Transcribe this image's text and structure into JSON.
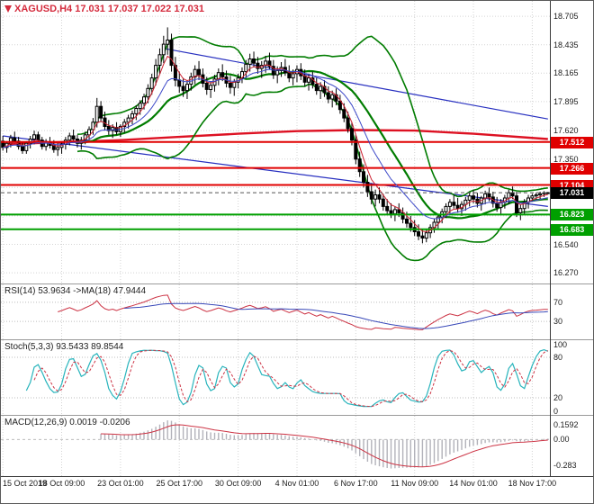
{
  "main": {
    "title": "XAGUSD,H4 17.031 17.037 17.022 17.031"
  },
  "rsi": {
    "title": "RSI(14) 53.9634 ->MA(18) 47.9444"
  },
  "stoch": {
    "title": "Stoch(5,3,3) 93.5433 89.8544"
  },
  "macd": {
    "title": "MACD(12,26,9) 0.0019 -0.0206"
  },
  "colors": {
    "up": "#ffffff",
    "down": "#000000",
    "outline": "#000000",
    "bands": "#007c00",
    "ma_fast": "#cc2030",
    "ma_slow": "#3c48c8",
    "ma_long": "#dd1122",
    "trend": "#2830c0",
    "res": "#e00000",
    "sup": "#00a000",
    "cur": "#000000",
    "rsi": "#cc3344",
    "rsi_ma": "#3848b8",
    "stoch_k": "#28b4bc",
    "stoch_d": "#cc3344",
    "macd_hist": "#b2b2ba",
    "macd_sig": "#cc3344",
    "grid": "#d4d4d4",
    "level": "#bcbcbc",
    "axis_text": "#1c1c1c",
    "title": "#d42a3c"
  },
  "chart_data": [
    {
      "type": "candlestick",
      "title": "XAGUSD,H4",
      "y_axis": {
        "min": 16.22,
        "max": 18.8,
        "grid_prices": [
          18.705,
          18.435,
          18.165,
          17.895,
          17.62,
          17.35,
          17.08,
          16.81,
          16.54,
          16.27
        ],
        "labels": [
          {
            "text": "18.705",
            "price": 18.705
          },
          {
            "text": "18.435",
            "price": 18.435
          },
          {
            "text": "18.165",
            "price": 18.165
          },
          {
            "text": "17.895",
            "price": 17.895
          },
          {
            "text": "17.620",
            "price": 17.62
          },
          {
            "text": "17.350",
            "price": 17.35
          },
          {
            "text": "16.540",
            "price": 16.54
          },
          {
            "text": "16.270",
            "price": 16.27
          }
        ]
      },
      "x_labels": [
        {
          "label": "15 Oct 2019",
          "bar": 0
        },
        {
          "label": "18 Oct 09:00",
          "bar": 15
        },
        {
          "label": "23 Oct 01:00",
          "bar": 30
        },
        {
          "label": "25 Oct 17:00",
          "bar": 45
        },
        {
          "label": "30 Oct 09:00",
          "bar": 60
        },
        {
          "label": "4 Nov 01:00",
          "bar": 75
        },
        {
          "label": "6 Nov 17:00",
          "bar": 90
        },
        {
          "label": "11 Nov 09:00",
          "bar": 105
        },
        {
          "label": "14 Nov 01:00",
          "bar": 120
        },
        {
          "label": "18 Nov 17:00",
          "bar": 135
        }
      ],
      "overlays": {
        "bollinger": {
          "period": 20,
          "deviation": 2
        },
        "ema_fast_period": 5,
        "ema_slow_period": 13,
        "horizontal_lines": [
          {
            "price": 17.512,
            "kind": "res",
            "label": "17.512"
          },
          {
            "price": 17.266,
            "kind": "res",
            "label": "17.266"
          },
          {
            "price": 17.104,
            "kind": "res",
            "label": "17.104"
          },
          {
            "price": 16.823,
            "kind": "sup",
            "label": "16.823"
          },
          {
            "price": 16.683,
            "kind": "sup",
            "label": "16.683"
          }
        ],
        "current_price": {
          "price": 17.031,
          "label": "17.031"
        },
        "trendlines": [
          {
            "from_bar": 41,
            "from_price": 18.4,
            "to_bar": 139,
            "to_price": 17.73
          },
          {
            "from_bar": 0,
            "from_price": 17.57,
            "to_bar": 139,
            "to_price": 16.9
          }
        ],
        "long_ma_points": [
          [
            0,
            17.49
          ],
          [
            15,
            17.51
          ],
          [
            30,
            17.53
          ],
          [
            45,
            17.56
          ],
          [
            60,
            17.59
          ],
          [
            75,
            17.615
          ],
          [
            90,
            17.625
          ],
          [
            105,
            17.62
          ],
          [
            120,
            17.59
          ],
          [
            139,
            17.54
          ]
        ]
      },
      "ohlc": [
        [
          17.52,
          17.57,
          17.43,
          17.46
        ],
        [
          17.46,
          17.52,
          17.41,
          17.5
        ],
        [
          17.5,
          17.58,
          17.46,
          17.55
        ],
        [
          17.55,
          17.61,
          17.5,
          17.52
        ],
        [
          17.52,
          17.56,
          17.44,
          17.47
        ],
        [
          17.47,
          17.51,
          17.4,
          17.43
        ],
        [
          17.43,
          17.52,
          17.4,
          17.5
        ],
        [
          17.5,
          17.57,
          17.45,
          17.54
        ],
        [
          17.54,
          17.62,
          17.49,
          17.58
        ],
        [
          17.58,
          17.61,
          17.5,
          17.53
        ],
        [
          17.53,
          17.56,
          17.44,
          17.47
        ],
        [
          17.47,
          17.54,
          17.43,
          17.51
        ],
        [
          17.51,
          17.56,
          17.45,
          17.48
        ],
        [
          17.48,
          17.53,
          17.41,
          17.44
        ],
        [
          17.44,
          17.5,
          17.38,
          17.46
        ],
        [
          17.46,
          17.52,
          17.4,
          17.49
        ],
        [
          17.49,
          17.56,
          17.44,
          17.53
        ],
        [
          17.53,
          17.6,
          17.48,
          17.57
        ],
        [
          17.57,
          17.63,
          17.51,
          17.54
        ],
        [
          17.54,
          17.58,
          17.46,
          17.5
        ],
        [
          17.5,
          17.56,
          17.44,
          17.53
        ],
        [
          17.53,
          17.61,
          17.49,
          17.58
        ],
        [
          17.58,
          17.66,
          17.53,
          17.63
        ],
        [
          17.63,
          17.74,
          17.58,
          17.7
        ],
        [
          17.7,
          17.93,
          17.65,
          17.85
        ],
        [
          17.85,
          17.9,
          17.7,
          17.74
        ],
        [
          17.74,
          17.8,
          17.62,
          17.66
        ],
        [
          17.66,
          17.72,
          17.58,
          17.62
        ],
        [
          17.62,
          17.68,
          17.55,
          17.65
        ],
        [
          17.65,
          17.7,
          17.58,
          17.61
        ],
        [
          17.61,
          17.68,
          17.56,
          17.66
        ],
        [
          17.66,
          17.73,
          17.6,
          17.7
        ],
        [
          17.7,
          17.77,
          17.64,
          17.74
        ],
        [
          17.74,
          17.81,
          17.68,
          17.78
        ],
        [
          17.78,
          17.86,
          17.72,
          17.83
        ],
        [
          17.83,
          17.91,
          17.77,
          17.88
        ],
        [
          17.88,
          17.97,
          17.82,
          17.94
        ],
        [
          17.94,
          18.06,
          17.88,
          18.02
        ],
        [
          18.02,
          18.16,
          17.96,
          18.12
        ],
        [
          18.12,
          18.3,
          18.05,
          18.24
        ],
        [
          18.24,
          18.4,
          18.16,
          18.34
        ],
        [
          18.34,
          18.52,
          18.26,
          18.44
        ],
        [
          18.44,
          18.6,
          18.34,
          18.48
        ],
        [
          18.48,
          18.54,
          18.18,
          18.24
        ],
        [
          18.24,
          18.32,
          18.04,
          18.1
        ],
        [
          18.1,
          18.18,
          17.98,
          18.04
        ],
        [
          18.04,
          18.12,
          17.94,
          18.0
        ],
        [
          18.0,
          18.1,
          17.92,
          18.06
        ],
        [
          18.06,
          18.17,
          18.0,
          18.13
        ],
        [
          18.13,
          18.24,
          18.06,
          18.2
        ],
        [
          18.2,
          18.28,
          18.1,
          18.15
        ],
        [
          18.15,
          18.21,
          18.03,
          18.07
        ],
        [
          18.07,
          18.13,
          17.96,
          18.01
        ],
        [
          18.01,
          18.09,
          17.93,
          18.05
        ],
        [
          18.05,
          18.15,
          17.99,
          18.11
        ],
        [
          18.11,
          18.21,
          18.05,
          18.17
        ],
        [
          18.17,
          18.25,
          18.09,
          18.13
        ],
        [
          18.13,
          18.19,
          18.03,
          18.07
        ],
        [
          18.07,
          18.14,
          17.97,
          18.03
        ],
        [
          18.03,
          18.11,
          17.95,
          18.08
        ],
        [
          18.08,
          18.16,
          18.02,
          18.12
        ],
        [
          18.12,
          18.22,
          18.07,
          18.18
        ],
        [
          18.18,
          18.29,
          18.12,
          18.25
        ],
        [
          18.25,
          18.35,
          18.18,
          18.3
        ],
        [
          18.3,
          18.37,
          18.22,
          18.26
        ],
        [
          18.26,
          18.32,
          18.16,
          18.21
        ],
        [
          18.21,
          18.28,
          18.12,
          18.24
        ],
        [
          18.24,
          18.33,
          18.17,
          18.28
        ],
        [
          18.28,
          18.36,
          18.2,
          18.23
        ],
        [
          18.23,
          18.29,
          18.11,
          18.15
        ],
        [
          18.15,
          18.23,
          18.07,
          18.19
        ],
        [
          18.19,
          18.27,
          18.13,
          18.22
        ],
        [
          18.22,
          18.3,
          18.14,
          18.17
        ],
        [
          18.17,
          18.24,
          18.08,
          18.12
        ],
        [
          18.12,
          18.2,
          18.05,
          18.16
        ],
        [
          18.16,
          18.24,
          18.08,
          18.2
        ],
        [
          18.2,
          18.26,
          18.1,
          18.14
        ],
        [
          18.14,
          18.2,
          18.04,
          18.08
        ],
        [
          18.08,
          18.16,
          18.0,
          18.12
        ],
        [
          18.12,
          18.18,
          18.02,
          18.06
        ],
        [
          18.06,
          18.12,
          17.96,
          18.0
        ],
        [
          18.0,
          18.08,
          17.92,
          18.04
        ],
        [
          18.04,
          18.1,
          17.94,
          17.98
        ],
        [
          17.98,
          18.04,
          17.88,
          17.92
        ],
        [
          17.92,
          18.0,
          17.84,
          17.96
        ],
        [
          17.96,
          18.02,
          17.86,
          17.9
        ],
        [
          17.9,
          17.96,
          17.78,
          17.82
        ],
        [
          17.82,
          17.88,
          17.7,
          17.74
        ],
        [
          17.74,
          17.8,
          17.6,
          17.64
        ],
        [
          17.64,
          17.7,
          17.48,
          17.53
        ],
        [
          17.53,
          17.58,
          17.3,
          17.35
        ],
        [
          17.35,
          17.42,
          17.18,
          17.23
        ],
        [
          17.23,
          17.3,
          17.08,
          17.13
        ],
        [
          17.13,
          17.2,
          16.99,
          17.04
        ],
        [
          17.04,
          17.12,
          16.92,
          16.97
        ],
        [
          16.97,
          17.06,
          16.9,
          17.01
        ],
        [
          17.01,
          17.08,
          16.93,
          16.97
        ],
        [
          16.97,
          17.02,
          16.86,
          16.9
        ],
        [
          16.9,
          16.97,
          16.82,
          16.86
        ],
        [
          16.86,
          16.93,
          16.79,
          16.83
        ],
        [
          16.83,
          16.9,
          16.76,
          16.87
        ],
        [
          16.87,
          16.93,
          16.8,
          16.84
        ],
        [
          16.84,
          16.89,
          16.74,
          16.78
        ],
        [
          16.78,
          16.85,
          16.7,
          16.74
        ],
        [
          16.74,
          16.81,
          16.66,
          16.7
        ],
        [
          16.7,
          16.77,
          16.62,
          16.66
        ],
        [
          16.66,
          16.73,
          16.58,
          16.62
        ],
        [
          16.62,
          16.69,
          16.55,
          16.6
        ],
        [
          16.6,
          16.68,
          16.56,
          16.65
        ],
        [
          16.65,
          16.73,
          16.6,
          16.7
        ],
        [
          16.7,
          16.78,
          16.65,
          16.75
        ],
        [
          16.75,
          16.83,
          16.69,
          16.8
        ],
        [
          16.8,
          16.88,
          16.74,
          16.85
        ],
        [
          16.85,
          16.93,
          16.79,
          16.9
        ],
        [
          16.9,
          16.97,
          16.83,
          16.94
        ],
        [
          16.94,
          17.01,
          16.88,
          16.91
        ],
        [
          16.91,
          16.98,
          16.84,
          16.88
        ],
        [
          16.88,
          16.95,
          16.81,
          16.92
        ],
        [
          16.92,
          16.99,
          16.86,
          16.96
        ],
        [
          16.96,
          17.03,
          16.9,
          17.0
        ],
        [
          17.0,
          17.06,
          16.93,
          16.97
        ],
        [
          16.97,
          17.03,
          16.89,
          16.93
        ],
        [
          16.93,
          17.0,
          16.86,
          16.98
        ],
        [
          16.98,
          17.05,
          16.92,
          17.02
        ],
        [
          17.02,
          17.08,
          16.95,
          16.99
        ],
        [
          16.99,
          17.04,
          16.89,
          16.93
        ],
        [
          16.93,
          16.99,
          16.85,
          16.89
        ],
        [
          16.89,
          16.97,
          16.83,
          16.94
        ],
        [
          16.94,
          17.01,
          16.88,
          16.98
        ],
        [
          16.98,
          17.06,
          16.92,
          17.03
        ],
        [
          17.03,
          17.09,
          16.97,
          17.0
        ],
        [
          17.0,
          17.04,
          16.8,
          16.84
        ],
        [
          16.84,
          16.92,
          16.77,
          16.88
        ],
        [
          16.88,
          16.97,
          16.83,
          16.94
        ],
        [
          16.94,
          17.01,
          16.88,
          16.98
        ],
        [
          16.98,
          17.02,
          16.95,
          17.0
        ],
        [
          17.0,
          17.03,
          16.96,
          17.01
        ],
        [
          17.01,
          17.04,
          16.97,
          17.02
        ],
        [
          17.02,
          17.045,
          16.99,
          17.03
        ],
        [
          17.031,
          17.037,
          17.022,
          17.031
        ]
      ]
    },
    {
      "type": "line",
      "panel": "rsi",
      "name": "RSI",
      "period": 14,
      "ma_period": 18,
      "last_value": 53.9634,
      "ma_last_value": 47.9444,
      "levels": [
        70,
        30
      ],
      "range": [
        0,
        100
      ],
      "axis_ticks": [
        {
          "text": "70",
          "value": 70
        },
        {
          "text": "30",
          "value": 30
        }
      ],
      "derived_from": "ohlc"
    },
    {
      "type": "line",
      "panel": "stoch",
      "name": "Stochastic",
      "params": [
        5,
        3,
        3
      ],
      "last_k": 93.5433,
      "last_d": 89.8544,
      "levels": [
        80,
        20
      ],
      "range": [
        0,
        100
      ],
      "axis_ticks": [
        {
          "text": "100",
          "value": 100
        },
        {
          "text": "80",
          "value": 80
        },
        {
          "text": "20",
          "value": 20
        },
        {
          "text": "0",
          "value": 0
        }
      ],
      "derived_from": "ohlc"
    },
    {
      "type": "macd",
      "panel": "macd",
      "params": [
        12,
        26,
        9
      ],
      "last_macd": 0.0019,
      "last_signal": -0.0206,
      "range": [
        -0.36,
        0.22
      ],
      "axis_ticks": [
        {
          "text": "0.1592",
          "value": 0.1592
        },
        {
          "text": "0.00",
          "value": 0
        },
        {
          "text": "-0.283",
          "value": -0.283
        }
      ],
      "derived_from": "ohlc"
    }
  ]
}
